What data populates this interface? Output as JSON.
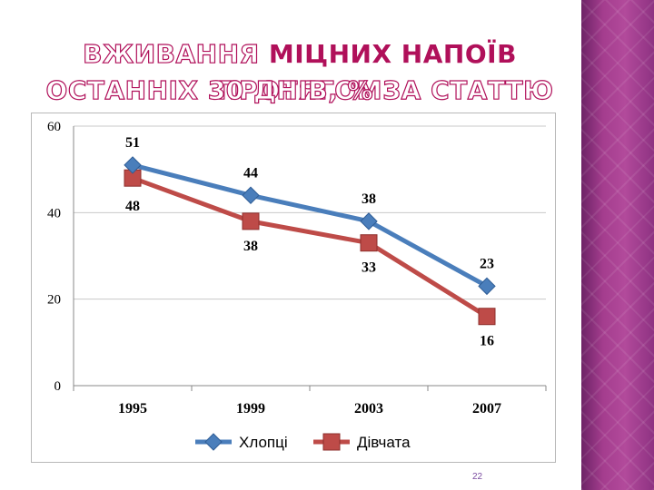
{
  "title": {
    "line1": [
      {
        "text": "ВЖИВАННЯ ",
        "style": "outline"
      },
      {
        "text": "МІЦНИХ НАПОЇВ",
        "style": "solid"
      },
      {
        "text": " ПРОТЯГОМ",
        "style": "outline"
      }
    ],
    "line2": [
      {
        "text": "ОСТАННІХ 30 ДНІВ, % ЗА СТАТТЮ",
        "style": "outline"
      }
    ]
  },
  "page_number": "22",
  "colors": {
    "title_accent": "#b0105a",
    "series_boys": "#4a7ebb",
    "series_girls": "#be4b48",
    "side_panel": "#a43d8e"
  },
  "chart_data": {
    "type": "line",
    "categories": [
      "1995",
      "1999",
      "2003",
      "2007"
    ],
    "series": [
      {
        "name": "Хлопці",
        "values": [
          51,
          44,
          38,
          23
        ],
        "marker": "diamond",
        "color": "#4a7ebb"
      },
      {
        "name": "Дівчата",
        "values": [
          48,
          38,
          33,
          16
        ],
        "marker": "square",
        "color": "#be4b48"
      }
    ],
    "yticks": [
      "0",
      "20",
      "40",
      "60"
    ],
    "ylim": [
      0,
      60
    ],
    "grid": true,
    "legend": "bottom",
    "data_labels": true
  }
}
